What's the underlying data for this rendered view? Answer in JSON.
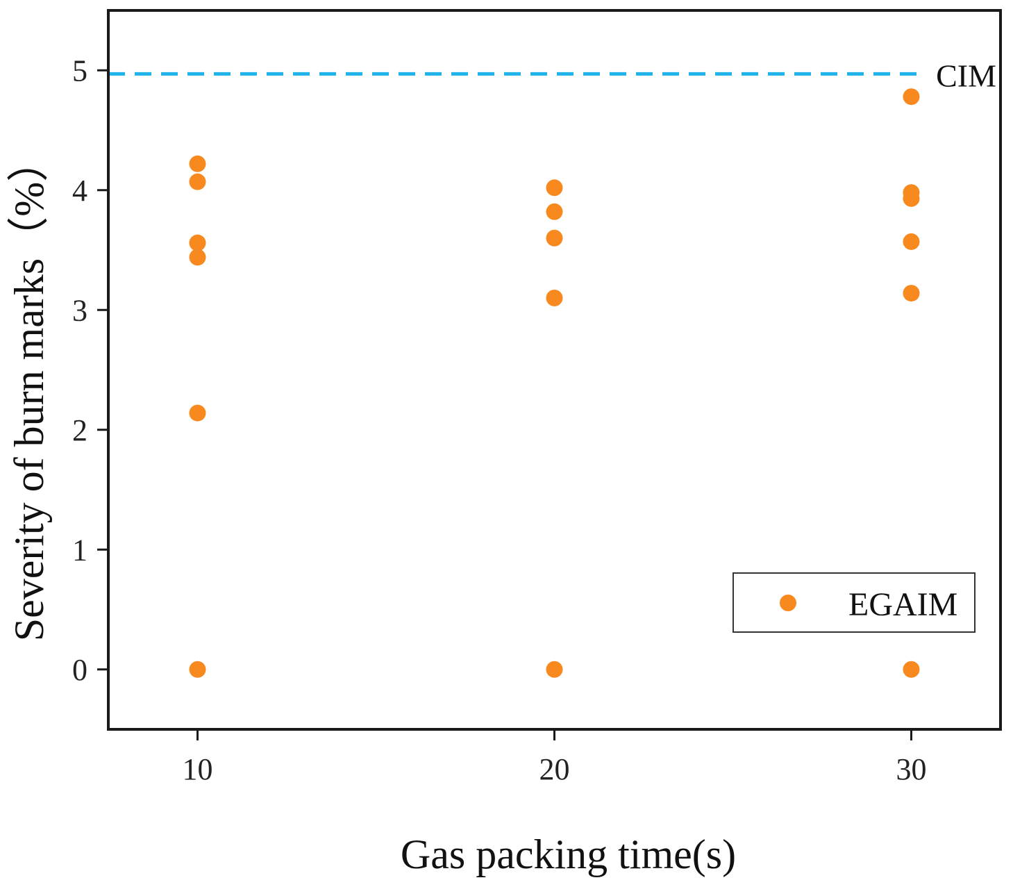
{
  "chart_data": {
    "type": "scatter",
    "title": "",
    "xlabel": "Gas packing time(s)",
    "ylabel": "Severity of burn marks（%）",
    "xlim": [
      7.5,
      32.5
    ],
    "ylim": [
      -0.5,
      5.5
    ],
    "x_ticks": [
      10,
      20,
      30
    ],
    "x_tick_labels": [
      "10",
      "20",
      "30"
    ],
    "y_ticks": [
      0,
      1,
      2,
      3,
      4,
      5
    ],
    "y_tick_labels": [
      "0",
      "1",
      "2",
      "3",
      "4",
      "5"
    ],
    "grid": false,
    "legend_position": "bottom-right",
    "series": [
      {
        "name": "EGAIM",
        "color": "#f7891f",
        "points": [
          {
            "x": 10,
            "y": 4.22
          },
          {
            "x": 10,
            "y": 4.07
          },
          {
            "x": 10,
            "y": 3.56
          },
          {
            "x": 10,
            "y": 3.44
          },
          {
            "x": 10,
            "y": 2.14
          },
          {
            "x": 10,
            "y": 0.0
          },
          {
            "x": 20,
            "y": 4.02
          },
          {
            "x": 20,
            "y": 3.82
          },
          {
            "x": 20,
            "y": 3.6
          },
          {
            "x": 20,
            "y": 3.1
          },
          {
            "x": 20,
            "y": 0.0
          },
          {
            "x": 30,
            "y": 4.78
          },
          {
            "x": 30,
            "y": 3.98
          },
          {
            "x": 30,
            "y": 3.93
          },
          {
            "x": 30,
            "y": 3.57
          },
          {
            "x": 30,
            "y": 3.14
          },
          {
            "x": 30,
            "y": 0.0
          }
        ]
      }
    ],
    "reference_lines": [
      {
        "name": "CIM",
        "y": 4.97,
        "color": "#1fb3ea",
        "style": "dashed"
      }
    ]
  }
}
